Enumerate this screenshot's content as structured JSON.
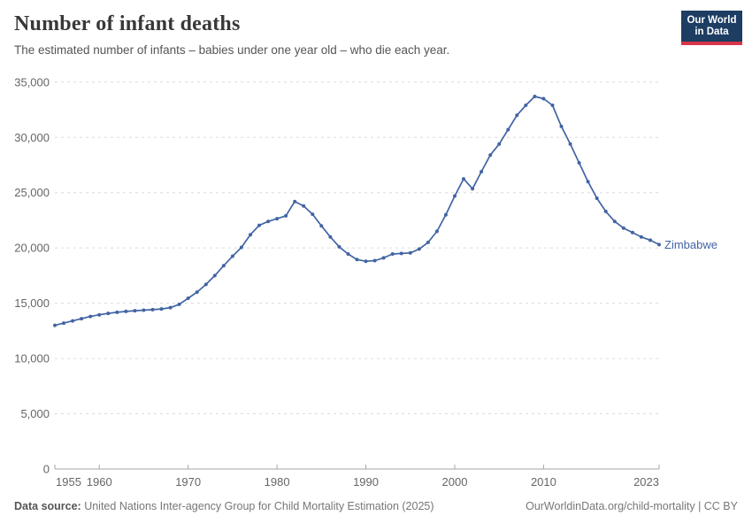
{
  "header": {
    "title": "Number of infant deaths",
    "subtitle": "The estimated number of infants – babies under one year old – who die each year.",
    "logo": {
      "line1": "Our World",
      "line2": "in Data"
    }
  },
  "colors": {
    "series": "#4264a3",
    "logo_bg": "#1d3d63",
    "logo_strip": "#d8354a",
    "gridline": "#dcdcdc",
    "axis": "#a5a5a5",
    "tick_label": "#666666"
  },
  "chart_data": {
    "type": "line",
    "title": "Number of infant deaths",
    "xlabel": "",
    "ylabel": "",
    "xlim": [
      1955,
      2023
    ],
    "ylim": [
      0,
      35000
    ],
    "grid": "dashed-horizontal",
    "legend": "end-of-line-label",
    "xticks": [
      1955,
      1960,
      1970,
      1980,
      1990,
      2000,
      2010,
      2023
    ],
    "yticks": [
      0,
      5000,
      10000,
      15000,
      20000,
      25000,
      30000,
      35000
    ],
    "series": [
      {
        "name": "Zimbabwe",
        "color": "#4264a3",
        "x": [
          1955,
          1956,
          1957,
          1958,
          1959,
          1960,
          1961,
          1962,
          1963,
          1964,
          1965,
          1966,
          1967,
          1968,
          1969,
          1970,
          1971,
          1972,
          1973,
          1974,
          1975,
          1976,
          1977,
          1978,
          1979,
          1980,
          1981,
          1982,
          1983,
          1984,
          1985,
          1986,
          1987,
          1988,
          1989,
          1990,
          1991,
          1992,
          1993,
          1994,
          1995,
          1996,
          1997,
          1998,
          1999,
          2000,
          2001,
          2002,
          2003,
          2004,
          2005,
          2006,
          2007,
          2008,
          2009,
          2010,
          2011,
          2012,
          2013,
          2014,
          2015,
          2016,
          2017,
          2018,
          2019,
          2020,
          2021,
          2022,
          2023
        ],
        "values": [
          13000,
          13200,
          13400,
          13600,
          13800,
          13950,
          14080,
          14180,
          14260,
          14320,
          14370,
          14420,
          14480,
          14600,
          14900,
          15450,
          16000,
          16700,
          17500,
          18400,
          19250,
          20050,
          21200,
          22050,
          22400,
          22650,
          22900,
          24200,
          23800,
          23050,
          22000,
          21000,
          20100,
          19450,
          18950,
          18800,
          18850,
          19100,
          19450,
          19500,
          19550,
          19900,
          20500,
          21500,
          23000,
          24700,
          26250,
          25350,
          26900,
          28400,
          29400,
          30700,
          32000,
          32900,
          33700,
          33500,
          32900,
          31000,
          29400,
          27700,
          26000,
          24500,
          23300,
          22400,
          21800,
          21400,
          21000,
          20700,
          20300
        ]
      }
    ]
  },
  "footer": {
    "datasource_label": "Data source:",
    "datasource_text": " United Nations Inter-agency Group for Child Mortality Estimation (2025)",
    "link": "OurWorldinData.org/child-mortality | CC BY"
  }
}
